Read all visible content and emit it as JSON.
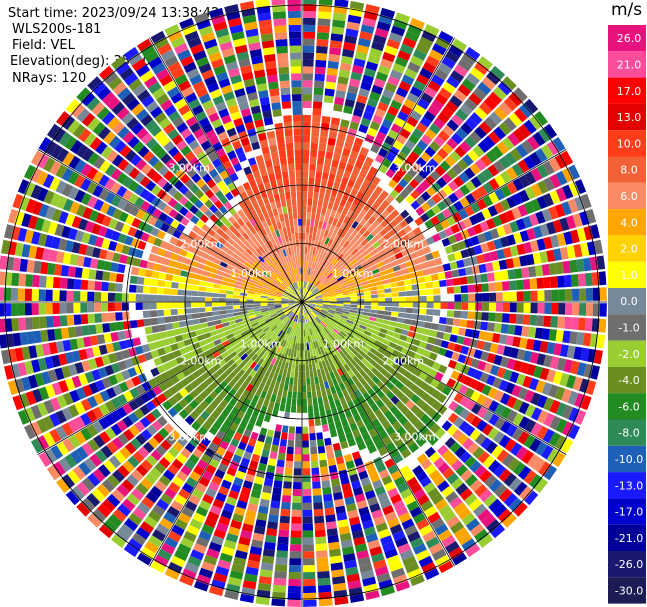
{
  "header": {
    "start_time": "Start time: 2023/09/24 13:38:42",
    "instrument": "WLS200s-181",
    "field": "Field: VEL",
    "elevation": "Elevation(deg): 35.30",
    "nrays": "NRays: 120"
  },
  "chart_data": {
    "type": "heatmap",
    "projection": "polar-ppi",
    "field": "VEL",
    "units": "m/s",
    "nrays": 120,
    "range_rings_km": [
      1.0,
      2.0,
      3.0
    ],
    "range_ring_labels": [
      "1.00km",
      "2.00km",
      "3.00km"
    ],
    "colorbar": {
      "label": "m/s",
      "ticks": [
        "26.0",
        "21.0",
        "17.0",
        "13.0",
        "10.0",
        "8.0",
        "6.0",
        "4.0",
        "2.0",
        "1.0",
        "0.0",
        "-1.0",
        "-2.0",
        "-4.0",
        "-6.0",
        "-8.0",
        "-10.0",
        "-13.0",
        "-17.0",
        "-21.0",
        "-26.0",
        "-30.0"
      ],
      "colors": [
        "#e8127e",
        "#fb4d9a",
        "#ff0000",
        "#e40000",
        "#ff3d1a",
        "#f26236",
        "#f98a64",
        "#ffa500",
        "#ffd200",
        "#ffff00",
        "#778899",
        "#6e6e6e",
        "#9acd32",
        "#6b8e23",
        "#228b22",
        "#2e8b57",
        "#1e5fb8",
        "#1a1aff",
        "#0000cd",
        "#000099",
        "#191970",
        "#1c1c55"
      ]
    }
  }
}
